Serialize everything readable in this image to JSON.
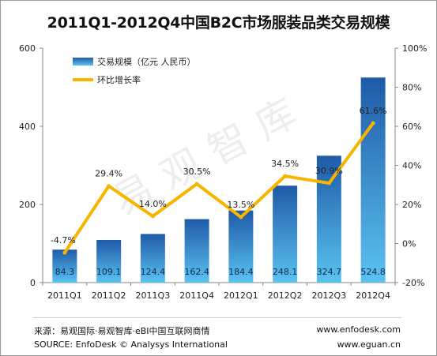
{
  "title": "2011Q1-2012Q4中国B2C市场服装品类交易规模",
  "watermark": "易观智库",
  "footer": {
    "source_cn": "来源：易观国际·易观智库·eBI中国互联网商情",
    "source_en": "SOURCE: EnfoDesk © Analysys International",
    "url_1": "www.enfodesk.com",
    "url_2": "www.eguan.cn"
  },
  "chart_data": {
    "type": "bar",
    "categories": [
      "2011Q1",
      "2011Q2",
      "2011Q3",
      "2011Q4",
      "2012Q1",
      "2012Q2",
      "2012Q3",
      "2012Q4"
    ],
    "series": [
      {
        "name": "交易规模（亿元 人民币）",
        "type": "bar",
        "axis": "left",
        "values": [
          84.3,
          109.1,
          124.4,
          162.4,
          184.4,
          248.1,
          324.7,
          524.8
        ],
        "labels": [
          "84.3",
          "109.1",
          "124.4",
          "162.4",
          "184.4",
          "248.1",
          "324.7",
          "524.8"
        ]
      },
      {
        "name": "环比增长率",
        "type": "line",
        "axis": "right",
        "values": [
          -4.7,
          29.4,
          14.0,
          30.5,
          13.5,
          34.5,
          30.9,
          61.6
        ],
        "labels": [
          "-4.7%",
          "29.4%",
          "14.0%",
          "30.5%",
          "13.5%",
          "34.5%",
          "30.9%",
          "61.6%"
        ]
      }
    ],
    "y_left": {
      "range": [
        0,
        600
      ],
      "ticks": [
        "0",
        "200",
        "400",
        "600"
      ]
    },
    "y_right": {
      "range": [
        -20,
        100
      ],
      "ticks": [
        "-20%",
        "0%",
        "20%",
        "40%",
        "60%",
        "80%",
        "100%"
      ]
    },
    "legend_position": "top-left",
    "grid": false,
    "colors": {
      "bar_top": "#1f5aa8",
      "bar_bottom": "#5bc3f0",
      "line": "#f7b500",
      "axis": "#8a8a8a"
    }
  }
}
